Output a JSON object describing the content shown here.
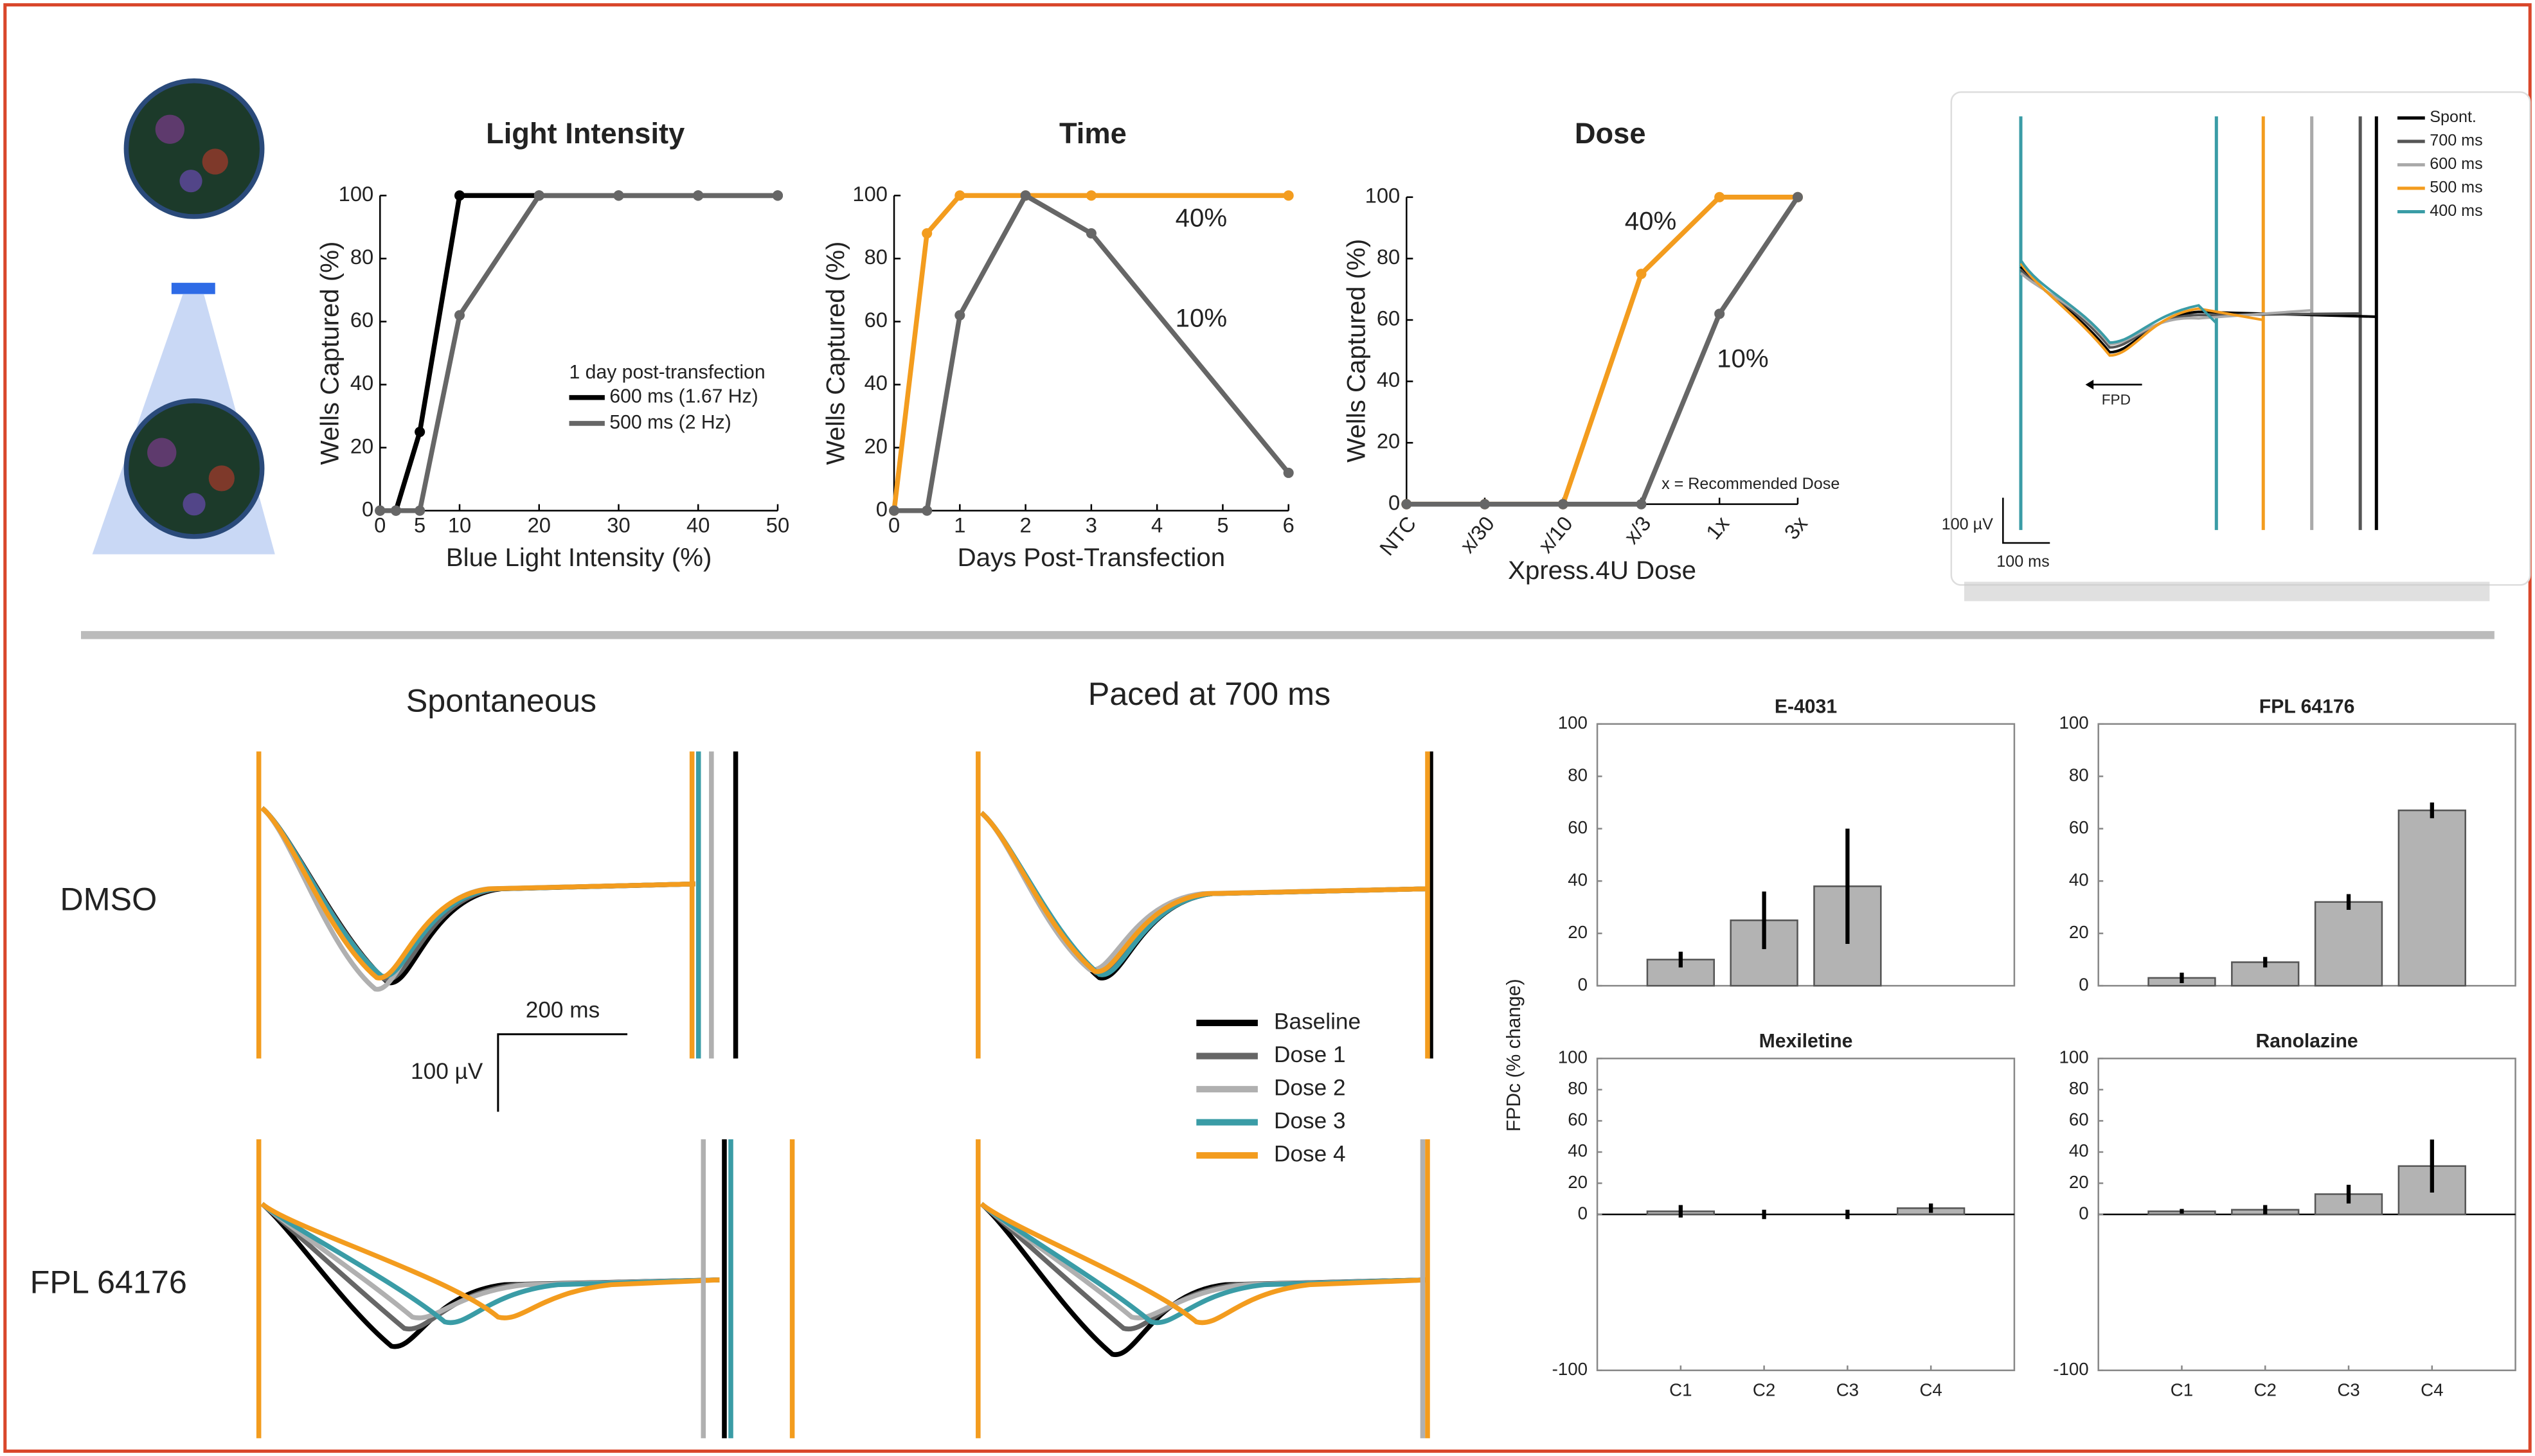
{
  "figure": {
    "top_traces": {
      "legend": [
        {
          "name": "Spont.",
          "color": "#000000"
        },
        {
          "name": "700 ms",
          "color": "#555555"
        },
        {
          "name": "600 ms",
          "color": "#aaaaaa"
        },
        {
          "name": "500 ms",
          "color": "#f39c1e"
        },
        {
          "name": "400 ms",
          "color": "#3a9ca6"
        }
      ],
      "fpd_label": "FPD",
      "scale_y": "100 µV",
      "scale_x": "100 ms"
    },
    "bottom_traces": {
      "columns": [
        "Spontaneous",
        "Paced at 700 ms"
      ],
      "rows": [
        "DMSO",
        "FPL 64176"
      ],
      "scale_x": "200 ms",
      "scale_y": "100 µV",
      "legend": [
        {
          "name": "Baseline",
          "color": "#000000"
        },
        {
          "name": "Dose 1",
          "color": "#666666"
        },
        {
          "name": "Dose 2",
          "color": "#b0b0b0"
        },
        {
          "name": "Dose 3",
          "color": "#3a9ca6"
        },
        {
          "name": "Dose 4",
          "color": "#f39c1e"
        }
      ]
    },
    "bar_y_label": "FPDc (% change)"
  },
  "chart_data": [
    {
      "type": "line",
      "title": "Light Intensity",
      "x_label": "Blue Light Intensity (%)",
      "y_label": "Wells Captured (%)",
      "x": [
        0,
        2,
        5,
        10,
        20,
        30,
        40,
        50
      ],
      "xlim": [
        0,
        50
      ],
      "xticks": [
        0,
        5,
        10,
        20,
        30,
        40,
        50
      ],
      "ylim": [
        0,
        100
      ],
      "yticks": [
        0,
        20,
        40,
        60,
        80,
        100
      ],
      "legend_title": "1 day post-transfection",
      "series": [
        {
          "name": "600 ms (1.67 Hz)",
          "color": "#000000",
          "values": [
            0,
            0,
            25,
            100,
            100,
            100,
            100,
            100
          ]
        },
        {
          "name": "500 ms (2 Hz)",
          "color": "#666666",
          "values": [
            0,
            0,
            0,
            62,
            100,
            100,
            100,
            100
          ]
        }
      ]
    },
    {
      "type": "line",
      "title": "Time",
      "x_label": "Days Post-Transfection",
      "y_label": "Wells Captured (%)",
      "x": [
        0,
        0.5,
        1,
        2,
        3,
        6
      ],
      "xlim": [
        0,
        6
      ],
      "xticks": [
        0,
        1,
        2,
        3,
        4,
        5,
        6
      ],
      "ylim": [
        0,
        100
      ],
      "yticks": [
        0,
        20,
        40,
        60,
        80,
        100
      ],
      "series": [
        {
          "name": "40%",
          "color": "#f39c1e",
          "values": [
            0,
            88,
            100,
            100,
            100,
            100
          ]
        },
        {
          "name": "10%",
          "color": "#666666",
          "values": [
            0,
            0,
            62,
            100,
            88,
            12
          ]
        }
      ]
    },
    {
      "type": "line",
      "title": "Dose",
      "x_label": "Xpress.4U Dose",
      "y_label": "Wells Captured (%)",
      "categories": [
        "NTC",
        "x/30",
        "x/10",
        "x/3",
        "1x",
        "3x"
      ],
      "ylim": [
        0,
        100
      ],
      "yticks": [
        0,
        20,
        40,
        60,
        80,
        100
      ],
      "note": "x = Recommended Dose",
      "series": [
        {
          "name": "40%",
          "color": "#f39c1e",
          "values": [
            0,
            0,
            0,
            75,
            100,
            100
          ]
        },
        {
          "name": "10%",
          "color": "#666666",
          "values": [
            0,
            0,
            0,
            0,
            62,
            100
          ]
        }
      ]
    },
    {
      "type": "bar",
      "title": "E-4031",
      "values": [
        10,
        25,
        38,
        0
      ],
      "errors": [
        3,
        11,
        22,
        0
      ],
      "ylim": [
        0,
        100
      ],
      "yticks": [
        0,
        20,
        40,
        60,
        80,
        100
      ]
    },
    {
      "type": "bar",
      "title": "FPL 64176",
      "values": [
        3,
        9,
        32,
        67
      ],
      "errors": [
        2,
        2,
        3,
        3
      ],
      "ylim": [
        0,
        100
      ],
      "yticks": [
        0,
        20,
        40,
        60,
        80,
        100
      ]
    },
    {
      "type": "bar",
      "title": "Mexiletine",
      "categories": [
        "C1",
        "C2",
        "C3",
        "C4"
      ],
      "values": [
        2,
        0,
        0,
        4
      ],
      "errors": [
        4,
        3,
        3,
        3
      ],
      "ylim": [
        -100,
        100
      ],
      "yticks": [
        -100,
        0,
        20,
        40,
        60,
        80,
        100
      ]
    },
    {
      "type": "bar",
      "title": "Ranolazine",
      "categories": [
        "C1",
        "C2",
        "C3",
        "C4"
      ],
      "values": [
        2,
        3,
        13,
        31
      ],
      "errors": [
        1.5,
        3,
        6,
        17
      ],
      "ylim": [
        -100,
        100
      ],
      "yticks": [
        -100,
        0,
        20,
        40,
        60,
        80,
        100
      ]
    }
  ]
}
